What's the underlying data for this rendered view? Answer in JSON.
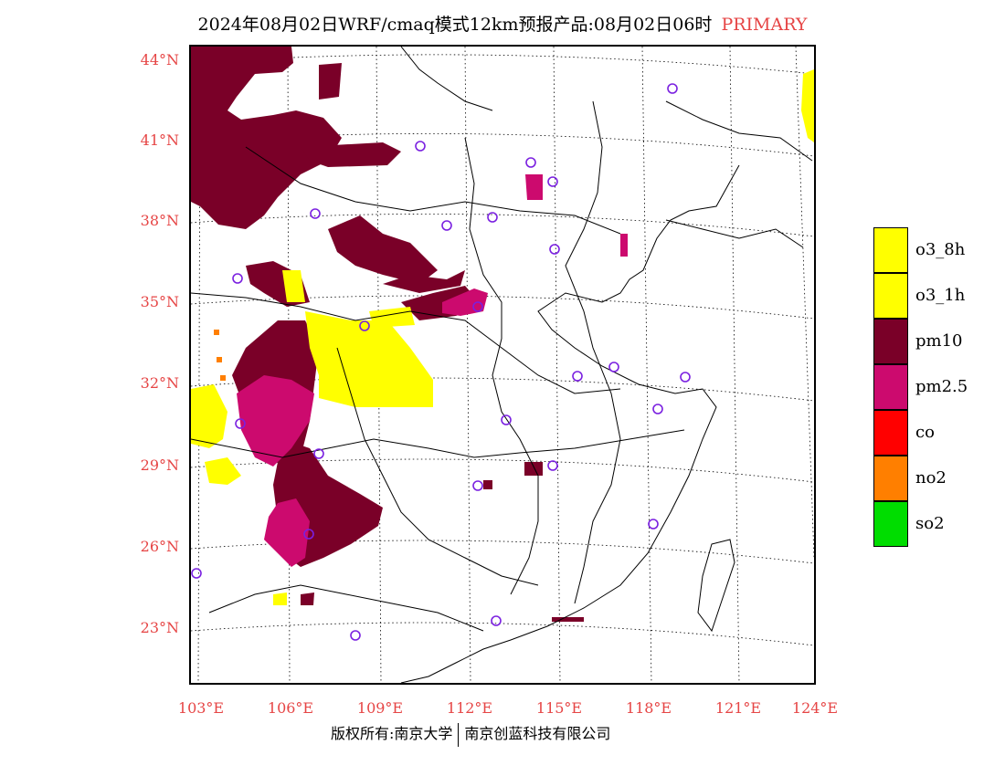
{
  "title": {
    "main": "2024年08月02日WRF/cmaq模式12km预报产品:08月02日06时",
    "tag": "PRIMARY"
  },
  "map": {
    "lat_labels": [
      "44°N",
      "41°N",
      "38°N",
      "35°N",
      "32°N",
      "29°N",
      "26°N",
      "23°N"
    ],
    "lon_labels": [
      "103°E",
      "106°E",
      "109°E",
      "112°E",
      "115°E",
      "118°E",
      "121°E",
      "124°E"
    ],
    "colors": {
      "pm10": "#7a0028",
      "pm2_5": "#cc0a6e",
      "o3": "#ffff00",
      "co": "#ff0000",
      "no2": "#ff7f00",
      "so2": "#00dd00",
      "station": "#7a20e0",
      "label": "#e64545"
    }
  },
  "legend": [
    {
      "label": "o3_8h",
      "color": "#ffff00"
    },
    {
      "label": "o3_1h",
      "color": "#ffff00"
    },
    {
      "label": "pm10",
      "color": "#7a0028"
    },
    {
      "label": "pm2.5",
      "color": "#cc0a6e"
    },
    {
      "label": "co",
      "color": "#ff0000"
    },
    {
      "label": "no2",
      "color": "#ff7f00"
    },
    {
      "label": "so2",
      "color": "#00dd00"
    }
  ],
  "footer": {
    "left": "版权所有:南京大学",
    "right": "南京创蓝科技有限公司"
  }
}
